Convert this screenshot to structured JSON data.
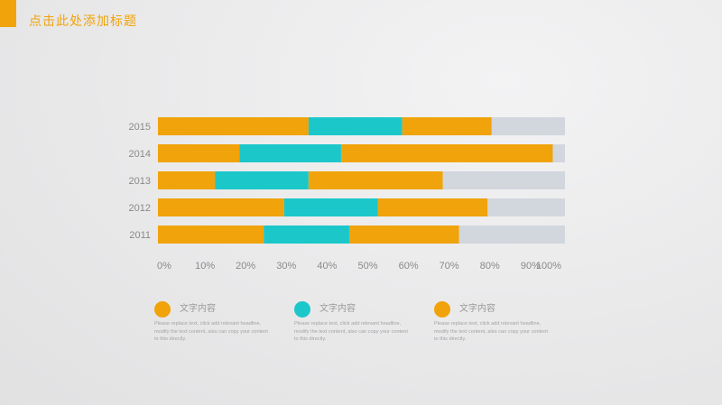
{
  "slide": {
    "title": "点击此处添加标题",
    "accent_color": "#F0A30A"
  },
  "chart_data": {
    "type": "bar",
    "orientation": "horizontal",
    "stacked": true,
    "categories": [
      "2015",
      "2014",
      "2013",
      "2012",
      "2011"
    ],
    "series": [
      {
        "color": "#F0A30A",
        "values": [
          37,
          20,
          14,
          31,
          26
        ]
      },
      {
        "color": "#1CC7CA",
        "values": [
          23,
          25,
          23,
          23,
          21
        ]
      },
      {
        "color": "#F0A30A",
        "values": [
          22,
          52,
          33,
          27,
          27
        ]
      },
      {
        "color": "#D2D6DD",
        "values": [
          18,
          3,
          30,
          19,
          26
        ]
      }
    ],
    "xlim": [
      0,
      100
    ],
    "x_ticks": [
      "0%",
      "10%",
      "20%",
      "30%",
      "40%",
      "50%",
      "60%",
      "70%",
      "80%",
      "90%",
      "100%"
    ],
    "grid": false,
    "legend_position": "bottom"
  },
  "legend": [
    {
      "title": "文字内容",
      "color": "#F0A30A",
      "description": "Please replace text, click add relevant headline, modify the text content, also can copy your content to this directly."
    },
    {
      "title": "文字内容",
      "color": "#1CC7CA",
      "description": "Please replace text, click add relevant headline, modify the text content, also can copy your content to this directly."
    },
    {
      "title": "文字内容",
      "color": "#F0A30A",
      "description": "Please replace text, click add relevant headline, modify the text content, also can copy your content to this directly."
    }
  ]
}
